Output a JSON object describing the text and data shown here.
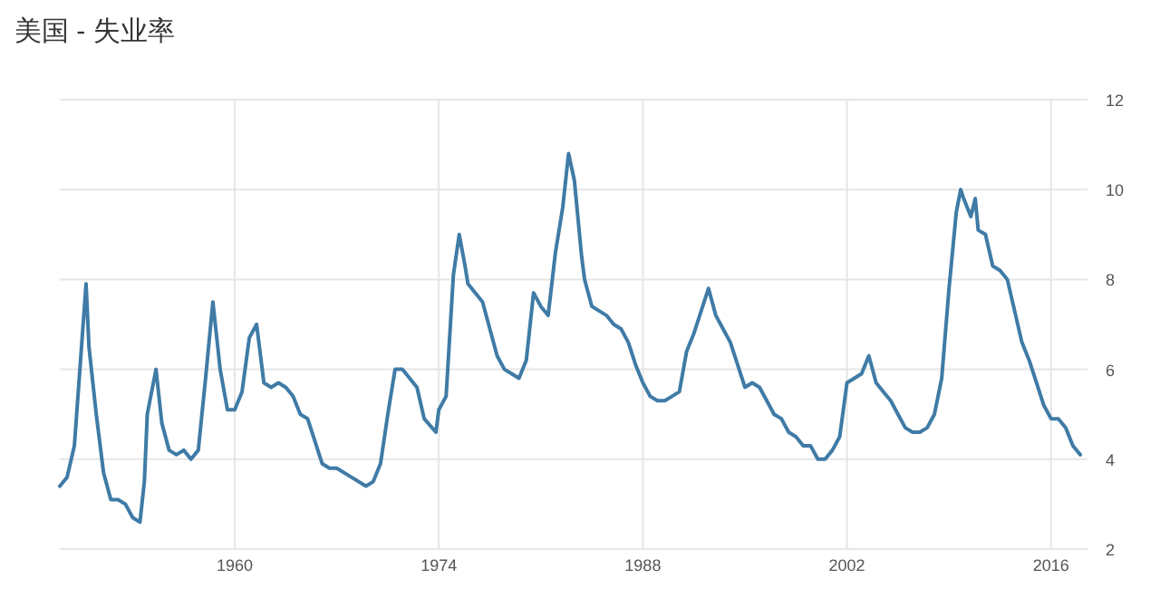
{
  "chart_data": {
    "type": "line",
    "title": "美国 - 失业率",
    "series": [
      {
        "color": "#3f7ba6",
        "x": [
          1948.0,
          1948.5,
          1949.0,
          1949.8,
          1950.0,
          1950.5,
          1951.0,
          1951.5,
          1952.0,
          1952.5,
          1953.0,
          1953.5,
          1953.8,
          1954.0,
          1954.6,
          1955.0,
          1955.5,
          1956.0,
          1956.5,
          1957.0,
          1957.5,
          1958.0,
          1958.5,
          1959.0,
          1959.5,
          1960.0,
          1960.5,
          1961.0,
          1961.5,
          1962.0,
          1962.5,
          1963.0,
          1963.5,
          1964.0,
          1964.5,
          1965.0,
          1965.5,
          1966.0,
          1966.5,
          1967.0,
          1968.0,
          1969.0,
          1969.5,
          1970.0,
          1970.5,
          1971.0,
          1971.5,
          1972.0,
          1972.5,
          1973.0,
          1973.8,
          1974.0,
          1974.5,
          1975.0,
          1975.4,
          1975.8,
          1976.0,
          1976.5,
          1977.0,
          1977.5,
          1978.0,
          1978.5,
          1979.0,
          1979.5,
          1980.0,
          1980.5,
          1981.0,
          1981.5,
          1982.0,
          1982.5,
          1982.9,
          1983.3,
          1983.8,
          1984.0,
          1984.5,
          1985.0,
          1985.5,
          1986.0,
          1986.5,
          1987.0,
          1987.5,
          1988.0,
          1988.5,
          1989.0,
          1989.5,
          1990.0,
          1990.5,
          1991.0,
          1991.5,
          1992.5,
          1993.0,
          1993.5,
          1994.0,
          1994.5,
          1995.0,
          1995.5,
          1996.0,
          1996.5,
          1997.0,
          1997.5,
          1998.0,
          1998.5,
          1999.0,
          1999.5,
          2000.0,
          2000.5,
          2001.0,
          2001.5,
          2002.0,
          2002.5,
          2003.0,
          2003.5,
          2004.0,
          2004.5,
          2005.0,
          2005.5,
          2006.0,
          2006.5,
          2007.0,
          2007.5,
          2008.0,
          2008.5,
          2009.0,
          2009.5,
          2009.8,
          2010.0,
          2010.5,
          2010.8,
          2011.0,
          2011.5,
          2012.0,
          2012.5,
          2013.0,
          2013.5,
          2014.0,
          2014.5,
          2015.0,
          2015.5,
          2016.0,
          2016.5,
          2017.0,
          2017.5,
          2018.0
        ],
        "values": [
          3.4,
          3.6,
          4.3,
          7.9,
          6.5,
          5.0,
          3.7,
          3.1,
          3.1,
          3.0,
          2.7,
          2.6,
          3.5,
          5.0,
          6.0,
          4.8,
          4.2,
          4.1,
          4.2,
          4.0,
          4.2,
          5.8,
          7.5,
          6.0,
          5.1,
          5.1,
          5.5,
          6.7,
          7.0,
          5.7,
          5.6,
          5.7,
          5.6,
          5.4,
          5.0,
          4.9,
          4.4,
          3.9,
          3.8,
          3.8,
          3.6,
          3.4,
          3.5,
          3.9,
          5.0,
          6.0,
          6.0,
          5.8,
          5.6,
          4.9,
          4.6,
          5.1,
          5.4,
          8.1,
          9.0,
          8.3,
          7.9,
          7.7,
          7.5,
          6.9,
          6.3,
          6.0,
          5.9,
          5.8,
          6.2,
          7.7,
          7.4,
          7.2,
          8.6,
          9.6,
          10.8,
          10.2,
          8.5,
          8.0,
          7.4,
          7.3,
          7.2,
          7.0,
          6.9,
          6.6,
          6.1,
          5.7,
          5.4,
          5.3,
          5.3,
          5.4,
          5.5,
          6.4,
          6.8,
          7.8,
          7.2,
          6.9,
          6.6,
          6.1,
          5.6,
          5.7,
          5.6,
          5.3,
          5.0,
          4.9,
          4.6,
          4.5,
          4.3,
          4.3,
          4.0,
          4.0,
          4.2,
          4.5,
          5.7,
          5.8,
          5.9,
          6.3,
          5.7,
          5.5,
          5.3,
          5.0,
          4.7,
          4.6,
          4.6,
          4.7,
          5.0,
          5.8,
          7.8,
          9.5,
          10.0,
          9.8,
          9.4,
          9.8,
          9.1,
          9.0,
          8.3,
          8.2,
          8.0,
          7.3,
          6.6,
          6.2,
          5.7,
          5.2,
          4.9,
          4.9,
          4.7,
          4.3,
          4.1
        ]
      }
    ],
    "xlim": [
      1948,
      2018.5
    ],
    "xticks": [
      1960,
      1974,
      1988,
      2002,
      2016
    ],
    "ylim": [
      2,
      12
    ],
    "yticks": [
      2,
      4,
      6,
      8,
      10,
      12
    ],
    "grid": true,
    "marker": "none",
    "line_style": "solid"
  }
}
